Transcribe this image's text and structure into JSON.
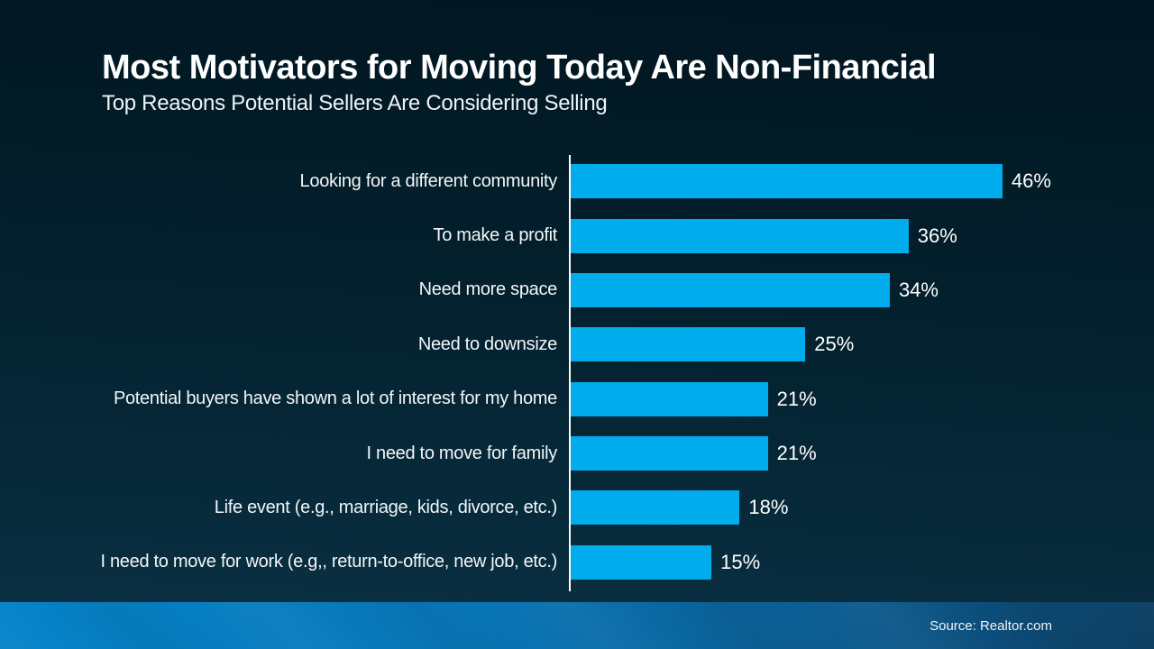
{
  "header": {
    "title": "Most Motivators for Moving Today Are Non-Financial",
    "subtitle": "Top Reasons Potential Sellers Are Considering Selling"
  },
  "chart_data": {
    "type": "bar",
    "orientation": "horizontal",
    "title": "Most Motivators for Moving Today Are Non-Financial",
    "subtitle": "Top Reasons Potential Sellers Are Considering Selling",
    "categories": [
      "Looking for a different community",
      "To make a profit",
      "Need more space",
      "Need to downsize",
      "Potential buyers have shown a lot of interest for my home",
      "I need to move for family",
      "Life event (e.g., marriage, kids, divorce, etc.)",
      "I need to move for work (e.g,, return-to-office, new job, etc.)"
    ],
    "values": [
      46,
      36,
      34,
      25,
      21,
      21,
      18,
      15
    ],
    "value_labels": [
      "46%",
      "36%",
      "34%",
      "25%",
      "21%",
      "21%",
      "18%",
      "15%"
    ],
    "unit": "%",
    "xlim": [
      0,
      50
    ],
    "grid": "off",
    "legend": "none",
    "bar_color": "#00ACEC",
    "axis_line_color": "#FFFFFF"
  },
  "footer": {
    "source": "Source: Realtor.com"
  },
  "colors": {
    "background_top": "#021621",
    "background_bottom": "#0B3245",
    "bar": "#00ACEC",
    "footer_band_left": "#0583C9",
    "footer_band_right": "#0D3F63",
    "text": "#FFFFFF"
  }
}
